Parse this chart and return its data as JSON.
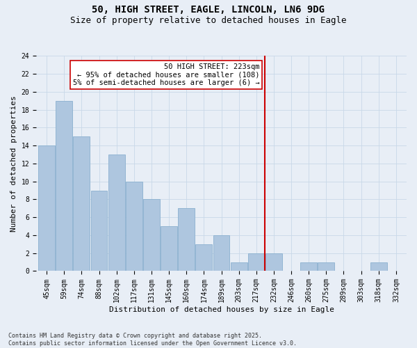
{
  "title_line1": "50, HIGH STREET, EAGLE, LINCOLN, LN6 9DG",
  "title_line2": "Size of property relative to detached houses in Eagle",
  "xlabel": "Distribution of detached houses by size in Eagle",
  "ylabel": "Number of detached properties",
  "categories": [
    "45sqm",
    "59sqm",
    "74sqm",
    "88sqm",
    "102sqm",
    "117sqm",
    "131sqm",
    "145sqm",
    "160sqm",
    "174sqm",
    "189sqm",
    "203sqm",
    "217sqm",
    "232sqm",
    "246sqm",
    "260sqm",
    "275sqm",
    "289sqm",
    "303sqm",
    "318sqm",
    "332sqm"
  ],
  "values": [
    14,
    19,
    15,
    9,
    13,
    10,
    8,
    5,
    7,
    3,
    4,
    1,
    2,
    2,
    0,
    1,
    1,
    0,
    0,
    1,
    0
  ],
  "bar_color": "#aec6df",
  "bar_edge_color": "#8ab0cf",
  "grid_color": "#c8d8e8",
  "background_color": "#e8eef6",
  "vline_x": 12.5,
  "vline_color": "#cc0000",
  "annotation_text": "50 HIGH STREET: 223sqm\n← 95% of detached houses are smaller (108)\n5% of semi-detached houses are larger (6) →",
  "ylim": [
    0,
    24
  ],
  "yticks": [
    0,
    2,
    4,
    6,
    8,
    10,
    12,
    14,
    16,
    18,
    20,
    22,
    24
  ],
  "footnote": "Contains HM Land Registry data © Crown copyright and database right 2025.\nContains public sector information licensed under the Open Government Licence v3.0.",
  "title_fontsize": 10,
  "subtitle_fontsize": 9,
  "axis_label_fontsize": 8,
  "tick_fontsize": 7,
  "annotation_fontsize": 7.5
}
